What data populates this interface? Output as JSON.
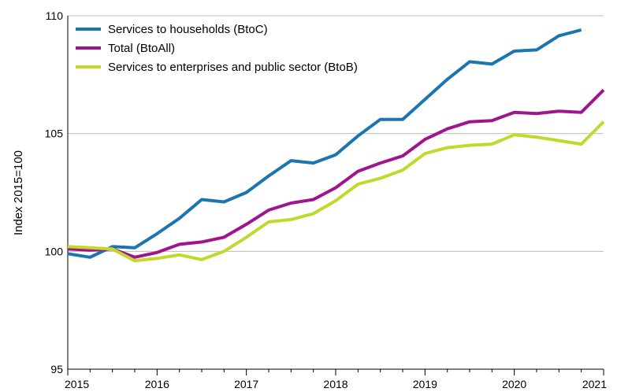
{
  "chart_data": {
    "type": "line",
    "title": "",
    "xlabel": "",
    "ylabel": "Index 2015=100",
    "ylim": [
      95,
      110
    ],
    "y_ticks": [
      "95",
      "100",
      "105",
      "110"
    ],
    "x_ticks": [
      "2015",
      "2016",
      "2017",
      "2018",
      "2019",
      "2020",
      "2021"
    ],
    "x_range": [
      2015.0,
      2021.0
    ],
    "grid": "horizontal",
    "legend_position": "top-left",
    "x": [
      2015.0,
      2015.25,
      2015.5,
      2015.75,
      2016.0,
      2016.25,
      2016.5,
      2016.75,
      2017.0,
      2017.25,
      2017.5,
      2017.75,
      2018.0,
      2018.25,
      2018.5,
      2018.75,
      2019.0,
      2019.25,
      2019.5,
      2019.75,
      2020.0,
      2020.25,
      2020.5,
      2020.75,
      2021.0
    ],
    "series": [
      {
        "name": "Services to households (BtoC)",
        "color": "#1a75b0",
        "values": [
          99.9,
          99.75,
          100.2,
          100.15,
          100.75,
          101.4,
          102.2,
          102.1,
          102.5,
          103.2,
          103.85,
          103.75,
          104.1,
          104.9,
          105.6,
          105.6,
          106.45,
          107.3,
          108.05,
          107.95,
          108.5,
          108.55,
          109.15,
          109.4,
          null
        ]
      },
      {
        "name": "Total (BtoAll)",
        "color": "#a0148c",
        "values": [
          100.1,
          100.05,
          100.1,
          99.75,
          99.95,
          100.3,
          100.4,
          100.6,
          101.15,
          101.75,
          102.05,
          102.2,
          102.7,
          103.4,
          103.75,
          104.05,
          104.75,
          105.2,
          105.5,
          105.55,
          105.9,
          105.85,
          105.95,
          105.9,
          106.85
        ]
      },
      {
        "name": "Services to enterprises and public sector (BtoB)",
        "color": "#c3d82a",
        "values": [
          100.2,
          100.15,
          100.1,
          99.6,
          99.7,
          99.85,
          99.65,
          100.0,
          100.6,
          101.25,
          101.35,
          101.6,
          102.15,
          102.85,
          103.1,
          103.45,
          104.15,
          104.4,
          104.5,
          104.55,
          104.95,
          104.85,
          104.7,
          104.55,
          105.5
        ]
      }
    ]
  }
}
